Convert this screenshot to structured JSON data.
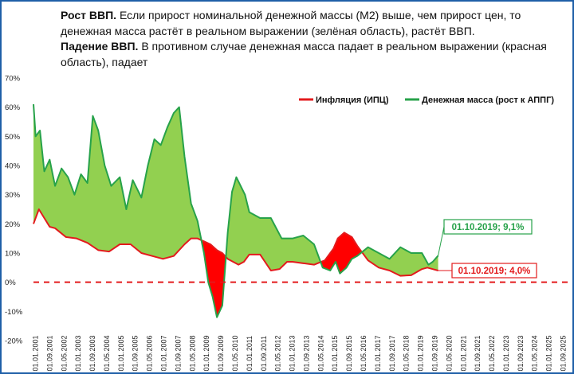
{
  "header": {
    "growth_bold": "Рост ВВП.",
    "growth_text": " Если прирост номинальной денежной массы (М2) выше, чем прирост цен, то денежная масса растёт в реальном выражении (зелёная область), растёт ВВП.",
    "decline_bold": "Падение ВВП.",
    "decline_text": " В противном случае денежная масса падает в реальном выражении (красная область), падает"
  },
  "chart_data": {
    "type": "area",
    "ylim": [
      -20,
      70
    ],
    "yticks": [
      "70%",
      "60%",
      "50%",
      "40%",
      "30%",
      "20%",
      "10%",
      "0%",
      "-10%",
      "-20%"
    ],
    "ytick_values": [
      70,
      60,
      50,
      40,
      30,
      20,
      10,
      0,
      -10,
      -20
    ],
    "xlim": [
      2001.0,
      2025.75
    ],
    "xticks": [
      "01.01.2001",
      "01.09.2001",
      "01.05.2002",
      "01.01.2003",
      "01.09.2003",
      "01.05.2004",
      "01.01.2005",
      "01.09.2005",
      "01.05.2006",
      "01.01.2007",
      "01.09.2007",
      "01.05.2008",
      "01.01.2009",
      "01.09.2009",
      "01.05.2010",
      "01.01.2011",
      "01.09.2011",
      "01.05.2012",
      "01.01.2013",
      "01.09.2013",
      "01.05.2014",
      "01.01.2015",
      "01.09.2015",
      "01.05.2016",
      "01.01.2017",
      "01.09.2017",
      "01.05.2018",
      "01.01.2019",
      "01.09.2019",
      "01.05.2020",
      "01.01.2021",
      "01.09.2021",
      "01.05.2022",
      "01.01.2023",
      "01.09.2023",
      "01.05.2024",
      "01.01.2025",
      "01.09.2025"
    ],
    "series": [
      {
        "name": "Инфляция (ИПЦ)",
        "color": "#e31a1c",
        "x": [
          2001.0,
          2001.25,
          2001.5,
          2001.75,
          2002.0,
          2002.5,
          2003.0,
          2003.5,
          2004.0,
          2004.5,
          2005.0,
          2005.5,
          2006.0,
          2006.5,
          2007.0,
          2007.5,
          2008.0,
          2008.3,
          2008.6,
          2008.9,
          2009.2,
          2009.5,
          2009.75,
          2010.0,
          2010.5,
          2010.75,
          2011.0,
          2011.5,
          2012.0,
          2012.4,
          2012.75,
          2013.0,
          2013.5,
          2014.0,
          2014.5,
          2014.9,
          2015.1,
          2015.4,
          2015.75,
          2016.0,
          2016.5,
          2017.0,
          2017.5,
          2018.0,
          2018.5,
          2019.0,
          2019.25,
          2019.5,
          2019.75
        ],
        "values": [
          20,
          25,
          22,
          19,
          18.5,
          15.5,
          15,
          13.5,
          11,
          10.5,
          13,
          13,
          10,
          9,
          8,
          9,
          13,
          15,
          15,
          14,
          13,
          11,
          10,
          8,
          6,
          7,
          9.5,
          9.5,
          4,
          4.5,
          7,
          7,
          6.5,
          6,
          7.5,
          11.5,
          15,
          17,
          15.5,
          12.5,
          7.5,
          5,
          4,
          2.2,
          2.4,
          4.5,
          5,
          4.5,
          4
        ]
      },
      {
        "name": "Денежная масса (рост к АППГ)",
        "color": "#27a24a",
        "x": [
          2001.0,
          2001.1,
          2001.3,
          2001.5,
          2001.75,
          2002.0,
          2002.3,
          2002.6,
          2002.9,
          2003.2,
          2003.5,
          2003.75,
          2004.0,
          2004.3,
          2004.6,
          2005.0,
          2005.3,
          2005.6,
          2006.0,
          2006.3,
          2006.6,
          2006.9,
          2007.2,
          2007.5,
          2007.75,
          2008.0,
          2008.3,
          2008.6,
          2008.9,
          2009.1,
          2009.3,
          2009.5,
          2009.75,
          2010.0,
          2010.2,
          2010.4,
          2010.6,
          2010.8,
          2011.0,
          2011.5,
          2012.0,
          2012.5,
          2013.0,
          2013.5,
          2014.0,
          2014.4,
          2014.75,
          2015.0,
          2015.2,
          2015.5,
          2015.75,
          2016.0,
          2016.5,
          2017.0,
          2017.5,
          2018.0,
          2018.5,
          2019.0,
          2019.3,
          2019.5,
          2019.75
        ],
        "values": [
          61,
          50,
          52,
          38,
          42,
          33,
          39,
          36,
          30,
          37,
          34,
          57,
          52,
          40,
          33,
          36,
          25,
          35,
          29,
          40,
          49,
          47,
          53,
          58,
          60,
          43,
          27,
          21,
          10,
          0,
          -5,
          -12,
          -8,
          17,
          31,
          36,
          33,
          30,
          24,
          22,
          22,
          15,
          15,
          16,
          13,
          5,
          4,
          7,
          3,
          5,
          8,
          9,
          12,
          10,
          8,
          12,
          10,
          10,
          6,
          7,
          9.1
        ]
      }
    ],
    "legend": [
      "Инфляция (ИПЦ)",
      "Денежная масса (рост к АППГ)"
    ],
    "legend_position": "top-right",
    "annotations": [
      {
        "text": "01.10.2019; 9,1%",
        "color": "#27a24a",
        "x": 2019.75,
        "y": 9.1
      },
      {
        "text": "01.10.2019; 4,0%",
        "color": "#e31a1c",
        "x": 2019.75,
        "y": 4.0
      }
    ],
    "zero_line": {
      "color": "#e31a1c",
      "style": "dashed"
    },
    "fill_colors": {
      "real_growth": "#92d050",
      "real_decline": "#ff0000"
    }
  }
}
